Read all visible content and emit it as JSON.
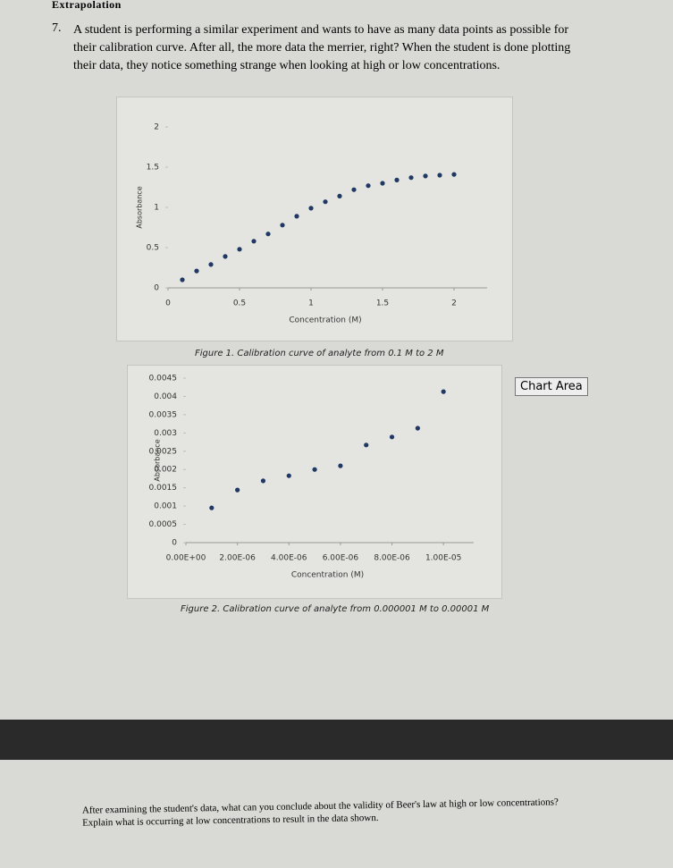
{
  "header": "Extrapolation",
  "question": {
    "number": "7.",
    "text": "A student is performing a similar experiment and wants to have as many data points as possible for their calibration curve. After all, the more data the merrier, right? When the student is done plotting their data, they notice something strange when looking at high or low concentrations."
  },
  "chart_data": [
    {
      "type": "scatter",
      "x_label": "Concentration (M)",
      "y_label": "Absorbance",
      "color": "#1f3864",
      "x": [
        0.1,
        0.2,
        0.3,
        0.4,
        0.5,
        0.6,
        0.7,
        0.8,
        0.9,
        1.0,
        1.1,
        1.2,
        1.3,
        1.4,
        1.5,
        1.6,
        1.7,
        1.8,
        1.9,
        2.0
      ],
      "values": [
        0.1,
        0.21,
        0.29,
        0.39,
        0.48,
        0.58,
        0.67,
        0.78,
        0.89,
        0.99,
        1.07,
        1.14,
        1.22,
        1.27,
        1.3,
        1.34,
        1.37,
        1.39,
        1.4,
        1.41
      ],
      "xlim": [
        0,
        2.2
      ],
      "ylim": [
        0,
        2
      ],
      "xticks": [
        0,
        0.5,
        1,
        1.5,
        2
      ],
      "yticks": [
        0,
        0.5,
        1,
        1.5,
        2
      ]
    },
    {
      "type": "scatter",
      "x_label": "Concentration (M)",
      "y_label": "Absorbance",
      "color": "#1f3864",
      "x": [
        1e-06,
        2e-06,
        3e-06,
        4e-06,
        5e-06,
        6e-06,
        7e-06,
        8e-06,
        9e-06,
        1e-05
      ],
      "values": [
        0.00095,
        0.00144,
        0.00169,
        0.00183,
        0.002,
        0.0021,
        0.00267,
        0.00289,
        0.00313,
        0.00413
      ],
      "xlim": [
        0,
        1.1e-05
      ],
      "ylim": [
        0,
        0.0045
      ],
      "xticks": [
        {
          "value": 0,
          "label": "0.00E+00"
        },
        {
          "value": 2e-06,
          "label": "2.00E-06"
        },
        {
          "value": 4e-06,
          "label": "4.00E-06"
        },
        {
          "value": 6e-06,
          "label": "6.00E-06"
        },
        {
          "value": 8e-06,
          "label": "8.00E-06"
        },
        {
          "value": 1e-05,
          "label": "1.00E-05"
        }
      ],
      "yticks": [
        0,
        0.0005,
        0.001,
        0.0015,
        0.002,
        0.0025,
        0.003,
        0.0035,
        0.004,
        0.0045
      ]
    }
  ],
  "captions": [
    "Figure 1. Calibration curve of analyte from 0.1 M to 2 M",
    "Figure 2. Calibration curve of analyte from 0.000001 M to 0.00001 M"
  ],
  "tooltip": "Chart Area",
  "question2": "After examining the student's data, what can you conclude about the validity of Beer's law at high or low concentrations? Explain what is occurring at low concentrations to result in the data shown."
}
